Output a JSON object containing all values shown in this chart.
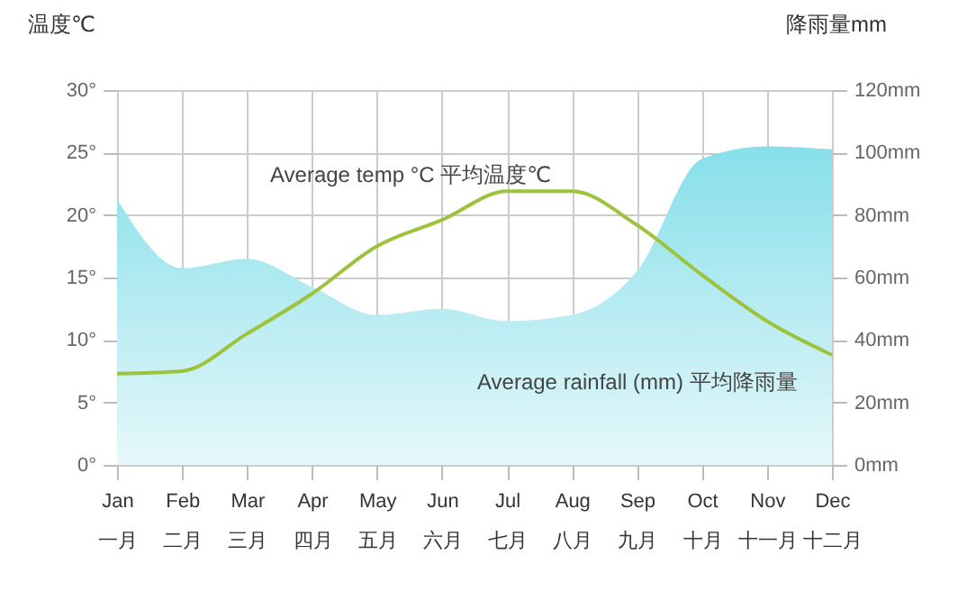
{
  "chart_data": {
    "type": "line",
    "ylabel": "温度℃",
    "y2label": "降雨量mm",
    "categories": [
      "Jan\n一月",
      "Feb\n二月",
      "Mar\n三月",
      "Apr\n四月",
      "May\n五月",
      "Jun\n六月",
      "Jul\n七月",
      "Aug\n八月",
      "Sep\n九月",
      "Oct\n十月",
      "Nov\n十一月",
      "Dec\n十二月"
    ],
    "series": [
      {
        "name": "Average rainfall (mm) 平均降雨量",
        "type": "area",
        "axis": "y2",
        "color": "#86dfe9",
        "values": [
          85,
          63,
          66,
          57,
          48,
          50,
          46,
          48,
          62,
          98,
          102,
          101
        ]
      },
      {
        "name": "Average temp °C 平均温度℃",
        "color": "#9dc23c",
        "values": [
          7.3,
          7.5,
          10.5,
          13.7,
          17.5,
          19.6,
          21.9,
          21.9,
          19.2,
          15.2,
          11.5,
          8.8
        ]
      }
    ],
    "ylim": [
      0,
      30
    ],
    "yticks": [
      {
        "value": 0,
        "label": "0°"
      },
      {
        "value": 5,
        "label": "5°"
      },
      {
        "value": 10,
        "label": "10°"
      },
      {
        "value": 15,
        "label": "15°"
      },
      {
        "value": 20,
        "label": "20°"
      },
      {
        "value": 25,
        "label": "25°"
      },
      {
        "value": 30,
        "label": "30°"
      }
    ],
    "y2lim": [
      0,
      120
    ],
    "y2ticks": [
      {
        "value": 0,
        "label": "0mm"
      },
      {
        "value": 20,
        "label": "20mm"
      },
      {
        "value": 40,
        "label": "40mm"
      },
      {
        "value": 60,
        "label": "60mm"
      },
      {
        "value": 80,
        "label": "80mm"
      },
      {
        "value": 100,
        "label": "100mm"
      },
      {
        "value": 120,
        "label": "120mm"
      }
    ],
    "grid": true,
    "legend": false
  }
}
